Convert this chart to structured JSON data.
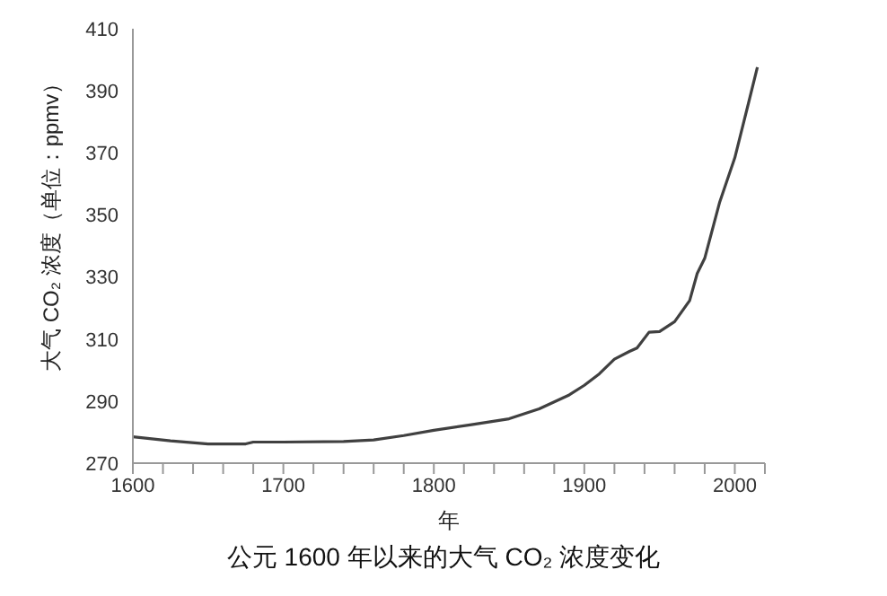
{
  "chart_data": {
    "type": "line",
    "title": "公元 1600 年以来的大气 CO₂ 浓度变化",
    "xlabel": "年",
    "ylabel": "大气 CO₂ 浓度（单位：ppmv）",
    "x": [
      1600,
      1625,
      1650,
      1675,
      1680,
      1700,
      1740,
      1760,
      1780,
      1800,
      1825,
      1850,
      1870,
      1890,
      1900,
      1910,
      1920,
      1930,
      1935,
      1943,
      1950,
      1960,
      1970,
      1975,
      1980,
      1990,
      2000,
      2010,
      2015
    ],
    "series": [
      {
        "color": "#404040",
        "values": [
          278.5,
          277.2,
          276.2,
          276.2,
          276.8,
          276.8,
          277.0,
          277.5,
          278.9,
          280.6,
          282.4,
          284.3,
          287.5,
          292.0,
          295.1,
          298.8,
          303.5,
          306.0,
          307.1,
          312.2,
          312.4,
          315.6,
          322.4,
          331.1,
          336.0,
          354.2,
          368.4,
          387.8,
          397.6
        ]
      }
    ],
    "xlim": [
      1600,
      2020
    ],
    "xticks": [
      1600,
      {
        "value": 1620,
        "label": null
      },
      {
        "value": 1640,
        "label": null
      },
      {
        "value": 1660,
        "label": null
      },
      {
        "value": 1680,
        "label": null
      },
      1700,
      {
        "value": 1720,
        "label": null
      },
      {
        "value": 1740,
        "label": null
      },
      {
        "value": 1760,
        "label": null
      },
      {
        "value": 1780,
        "label": null
      },
      1800,
      {
        "value": 1820,
        "label": null
      },
      {
        "value": 1840,
        "label": null
      },
      {
        "value": 1860,
        "label": null
      },
      {
        "value": 1880,
        "label": null
      },
      1900,
      {
        "value": 1920,
        "label": null
      },
      {
        "value": 1940,
        "label": null
      },
      {
        "value": 1960,
        "label": null
      },
      {
        "value": 1980,
        "label": null
      },
      2000,
      {
        "value": 2020,
        "label": null
      }
    ],
    "ylim": [
      270,
      410
    ],
    "yticks": [
      270,
      290,
      310,
      330,
      350,
      370,
      390,
      410
    ],
    "grid": false,
    "legend": false,
    "marker": "none",
    "line_style": "solid"
  }
}
